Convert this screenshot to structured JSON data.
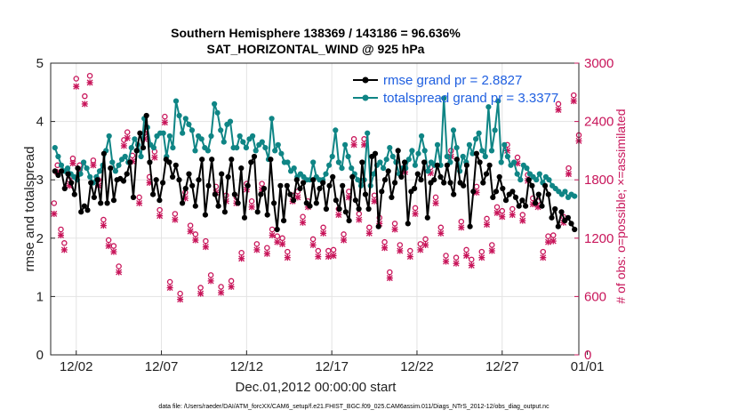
{
  "chart_data": {
    "type": "line",
    "title_line1": "Southern Hemisphere 138369 / 143186 = 96.636%",
    "title_line2": "SAT_HORIZONTAL_WIND @ 925 hPa",
    "xlabel": "Dec.01,2012 00:00:00 start",
    "ylabel": "rmse and totalspread",
    "ylabel_right": "# of obs: o=possible; ×=assimilated",
    "footer": "data file: /Users/raeder/DAI/ATM_forcXX/CAM6_setup/f.e21.FHIST_BGC.f09_025.CAM6assim.011/Diags_NTrS_2012-12/obs_diag_output.nc",
    "xlim": [
      0.5,
      31.5
    ],
    "ylim": [
      0,
      5
    ],
    "ylim_right": [
      0,
      3000
    ],
    "x_ticks": [
      {
        "x": 2,
        "label": "12/02"
      },
      {
        "x": 7,
        "label": "12/07"
      },
      {
        "x": 12,
        "label": "12/12"
      },
      {
        "x": 17,
        "label": "12/17"
      },
      {
        "x": 22,
        "label": "12/22"
      },
      {
        "x": 27,
        "label": "12/27"
      },
      {
        "x": 32,
        "label": "01/01"
      }
    ],
    "y_ticks": [
      "0",
      "1",
      "2",
      "3",
      "4",
      "5"
    ],
    "y_right_ticks": [
      "0",
      "600",
      "1200",
      "1800",
      "2400",
      "3000"
    ],
    "colors": {
      "rmse": "#000000",
      "spread": "#0f8585",
      "obs": "#c8155a",
      "legend_text": "#1f5fe0"
    },
    "series": [
      {
        "name": "rmse grand pr = 2.8827",
        "color": "#000000",
        "values": [
          3.15,
          3.08,
          3.15,
          2.85,
          3.1,
          2.95,
          2.75,
          3.2,
          2.45,
          2.55,
          2.48,
          2.95,
          2.7,
          3.0,
          2.6,
          3.45,
          2.6,
          3.2,
          2.65,
          3.0,
          3.02,
          2.98,
          3.1,
          3.3,
          2.7,
          3.5,
          3.8,
          3.55,
          4.1,
          3.3,
          2.75,
          3.0,
          2.65,
          2.95,
          3.35,
          3.3,
          3.05,
          3.25,
          3.0,
          2.6,
          2.85,
          3.1,
          2.9,
          2.55,
          3.0,
          3.35,
          2.4,
          2.9,
          3.35,
          2.75,
          2.55,
          3.1,
          2.45,
          3.05,
          3.35,
          2.75,
          2.6,
          3.2,
          2.35,
          2.9,
          3.3,
          3.4,
          2.45,
          2.75,
          2.85,
          2.4,
          3.35,
          2.6,
          2.15,
          2.9,
          2.3,
          2.9,
          2.75,
          2.65,
          3.0,
          2.85,
          2.95,
          2.6,
          2.55,
          3.0,
          2.6,
          2.85,
          2.95,
          2.5,
          2.9,
          3.05,
          2.65,
          2.5,
          2.9,
          2.45,
          2.3,
          3.05,
          2.65,
          2.5,
          3.3,
          2.75,
          2.5,
          3.4,
          3.45,
          2.2,
          2.8,
          3.0,
          3.15,
          2.7,
          2.95,
          3.5,
          3.05,
          3.3,
          2.25,
          2.8,
          2.85,
          3.1,
          3.0,
          3.3,
          2.35,
          2.95,
          3.0,
          3.25,
          3.05,
          2.95,
          3.25,
          2.95,
          2.75,
          3.35,
          2.95,
          2.9,
          3.25,
          2.2,
          2.8,
          3.45,
          3.3,
          2.95,
          3.1,
          3.25,
          2.7,
          2.8,
          3.05,
          2.85,
          2.65,
          2.75,
          2.8,
          2.7,
          2.55,
          2.65,
          2.55,
          3.0,
          2.9,
          2.6,
          2.75,
          2.55,
          2.9,
          2.75,
          2.35,
          2.5,
          2.2,
          2.45,
          2.3,
          2.35,
          2.25,
          2.15
        ]
      },
      {
        "name": "totalspread grand pr = 3.3377",
        "color": "#0f8585",
        "values": [
          3.55,
          3.4,
          3.25,
          3.15,
          3.2,
          3.1,
          3.05,
          3.0,
          3.1,
          3.3,
          3.2,
          3.05,
          2.95,
          3.05,
          3.15,
          3.25,
          3.5,
          3.75,
          3.3,
          3.15,
          3.25,
          3.35,
          3.4,
          3.3,
          3.55,
          3.7,
          3.6,
          3.4,
          4.05,
          3.9,
          3.6,
          3.55,
          3.75,
          3.8,
          3.8,
          3.4,
          3.75,
          3.55,
          4.35,
          4.1,
          3.8,
          4.05,
          3.95,
          3.85,
          3.5,
          3.75,
          3.7,
          3.55,
          3.5,
          3.75,
          4.3,
          4.15,
          3.85,
          3.65,
          3.95,
          4.0,
          3.55,
          3.55,
          3.75,
          3.65,
          3.55,
          3.7,
          3.75,
          3.5,
          3.6,
          3.65,
          3.55,
          3.35,
          4.05,
          3.5,
          3.6,
          3.45,
          3.3,
          3.3,
          3.15,
          3.2,
          3.05,
          3.1,
          3.05,
          3.0,
          3.0,
          3.3,
          3.05,
          3.0,
          3.0,
          3.1,
          3.25,
          3.4,
          3.85,
          3.3,
          3.2,
          3.6,
          3.4,
          3.2,
          3.1,
          3.0,
          2.9,
          3.0,
          3.8,
          2.9,
          3.1,
          3.25,
          3.3,
          3.2,
          3.35,
          3.55,
          3.4,
          3.3,
          3.1,
          3.2,
          3.2,
          3.35,
          3.5,
          3.25,
          3.45,
          3.75,
          3.5,
          3.15,
          3.3,
          3.25,
          3.6,
          3.25,
          4.4,
          3.4,
          3.3,
          3.85,
          3.55,
          3.15,
          3.4,
          3.3,
          3.6,
          3.45,
          3.7,
          3.8,
          3.5,
          3.4,
          4.25,
          3.5,
          3.85,
          4.35,
          3.3,
          3.6,
          3.4,
          3.25,
          3.3,
          3.1,
          3.0,
          3.25,
          3.2,
          3.1,
          3.05,
          3.0,
          3.1,
          2.95,
          3.05,
          3.0,
          2.9,
          2.85,
          2.8,
          2.75,
          2.8,
          2.7,
          2.75,
          2.72
        ]
      }
    ],
    "obs_possible": [
      {
        "x": 0.7,
        "v": 1560
      },
      {
        "x": 0.9,
        "v": 1950
      },
      {
        "x": 1.1,
        "v": 1290
      },
      {
        "x": 1.3,
        "v": 1150
      },
      {
        "x": 1.6,
        "v": 1800
      },
      {
        "x": 1.8,
        "v": 2020
      },
      {
        "x": 2.0,
        "v": 2840
      },
      {
        "x": 2.2,
        "v": 1950
      },
      {
        "x": 2.5,
        "v": 2660
      },
      {
        "x": 2.8,
        "v": 2870
      },
      {
        "x": 3.0,
        "v": 2000
      },
      {
        "x": 3.3,
        "v": 1800
      },
      {
        "x": 3.6,
        "v": 1390
      },
      {
        "x": 3.9,
        "v": 1180
      },
      {
        "x": 4.2,
        "v": 1120
      },
      {
        "x": 4.5,
        "v": 910
      },
      {
        "x": 4.8,
        "v": 2210
      },
      {
        "x": 5.0,
        "v": 2290
      },
      {
        "x": 5.3,
        "v": 2050
      },
      {
        "x": 5.7,
        "v": 1620
      },
      {
        "x": 6.0,
        "v": 2280
      },
      {
        "x": 6.3,
        "v": 1830
      },
      {
        "x": 6.6,
        "v": 2090
      },
      {
        "x": 6.9,
        "v": 1490
      },
      {
        "x": 7.2,
        "v": 2450
      },
      {
        "x": 7.5,
        "v": 750
      },
      {
        "x": 7.8,
        "v": 1450
      },
      {
        "x": 8.1,
        "v": 630
      },
      {
        "x": 8.4,
        "v": 1670
      },
      {
        "x": 8.7,
        "v": 1330
      },
      {
        "x": 9.0,
        "v": 1240
      },
      {
        "x": 9.3,
        "v": 690
      },
      {
        "x": 9.6,
        "v": 1170
      },
      {
        "x": 9.9,
        "v": 820
      },
      {
        "x": 10.2,
        "v": 1730
      },
      {
        "x": 10.5,
        "v": 700
      },
      {
        "x": 10.8,
        "v": 1640
      },
      {
        "x": 11.1,
        "v": 760
      },
      {
        "x": 11.4,
        "v": 1620
      },
      {
        "x": 11.7,
        "v": 1050
      },
      {
        "x": 12.0,
        "v": 1760
      },
      {
        "x": 12.3,
        "v": 1580
      },
      {
        "x": 12.6,
        "v": 1140
      },
      {
        "x": 12.9,
        "v": 1760
      },
      {
        "x": 13.2,
        "v": 1100
      },
      {
        "x": 13.5,
        "v": 1290
      },
      {
        "x": 13.8,
        "v": 1220
      },
      {
        "x": 14.1,
        "v": 1200
      },
      {
        "x": 14.4,
        "v": 1060
      },
      {
        "x": 14.7,
        "v": 1640
      },
      {
        "x": 15.0,
        "v": 1680
      },
      {
        "x": 15.3,
        "v": 1420
      },
      {
        "x": 15.6,
        "v": 1580
      },
      {
        "x": 15.9,
        "v": 1190
      },
      {
        "x": 16.2,
        "v": 1070
      },
      {
        "x": 16.5,
        "v": 1310
      },
      {
        "x": 16.8,
        "v": 1070
      },
      {
        "x": 17.1,
        "v": 1080
      },
      {
        "x": 17.4,
        "v": 1500
      },
      {
        "x": 17.7,
        "v": 1240
      },
      {
        "x": 18.0,
        "v": 1680
      },
      {
        "x": 18.3,
        "v": 2220
      },
      {
        "x": 18.6,
        "v": 1450
      },
      {
        "x": 18.9,
        "v": 2220
      },
      {
        "x": 19.2,
        "v": 1310
      },
      {
        "x": 19.5,
        "v": 1640
      },
      {
        "x": 19.8,
        "v": 1410
      },
      {
        "x": 20.1,
        "v": 1160
      },
      {
        "x": 20.4,
        "v": 850
      },
      {
        "x": 20.7,
        "v": 1350
      },
      {
        "x": 21.0,
        "v": 1130
      },
      {
        "x": 21.3,
        "v": 1940
      },
      {
        "x": 21.6,
        "v": 1070
      },
      {
        "x": 21.9,
        "v": 1510
      },
      {
        "x": 22.2,
        "v": 1140
      },
      {
        "x": 22.5,
        "v": 1190
      },
      {
        "x": 22.8,
        "v": 1930
      },
      {
        "x": 23.1,
        "v": 1620
      },
      {
        "x": 23.4,
        "v": 1310
      },
      {
        "x": 23.7,
        "v": 1020
      },
      {
        "x": 24.0,
        "v": 2100
      },
      {
        "x": 24.3,
        "v": 1000
      },
      {
        "x": 24.6,
        "v": 1370
      },
      {
        "x": 24.9,
        "v": 1080
      },
      {
        "x": 25.2,
        "v": 980
      },
      {
        "x": 25.5,
        "v": 1730
      },
      {
        "x": 25.8,
        "v": 1060
      },
      {
        "x": 26.1,
        "v": 1400
      },
      {
        "x": 26.4,
        "v": 1130
      },
      {
        "x": 26.7,
        "v": 1520
      },
      {
        "x": 27.0,
        "v": 1480
      },
      {
        "x": 27.3,
        "v": 2160
      },
      {
        "x": 27.6,
        "v": 1500
      },
      {
        "x": 27.9,
        "v": 2030
      },
      {
        "x": 28.2,
        "v": 1440
      },
      {
        "x": 28.5,
        "v": 1850
      },
      {
        "x": 28.8,
        "v": 1610
      },
      {
        "x": 29.1,
        "v": 1580
      },
      {
        "x": 29.4,
        "v": 1060
      },
      {
        "x": 29.7,
        "v": 1220
      },
      {
        "x": 30.0,
        "v": 1230
      },
      {
        "x": 30.3,
        "v": 2580
      },
      {
        "x": 30.6,
        "v": 1420
      },
      {
        "x": 30.9,
        "v": 1920
      },
      {
        "x": 31.2,
        "v": 2670
      },
      {
        "x": 31.5,
        "v": 2260
      }
    ],
    "obs_assimilated": [
      {
        "x": 0.7,
        "v": 1450
      },
      {
        "x": 0.9,
        "v": 1880
      },
      {
        "x": 1.1,
        "v": 1230
      },
      {
        "x": 1.3,
        "v": 1080
      },
      {
        "x": 1.6,
        "v": 1740
      },
      {
        "x": 1.8,
        "v": 1970
      },
      {
        "x": 2.0,
        "v": 2760
      },
      {
        "x": 2.2,
        "v": 1900
      },
      {
        "x": 2.5,
        "v": 2580
      },
      {
        "x": 2.8,
        "v": 2800
      },
      {
        "x": 3.0,
        "v": 1950
      },
      {
        "x": 3.3,
        "v": 1740
      },
      {
        "x": 3.6,
        "v": 1330
      },
      {
        "x": 3.9,
        "v": 1120
      },
      {
        "x": 4.2,
        "v": 1060
      },
      {
        "x": 4.5,
        "v": 850
      },
      {
        "x": 4.8,
        "v": 2150
      },
      {
        "x": 5.0,
        "v": 2230
      },
      {
        "x": 5.3,
        "v": 1990
      },
      {
        "x": 5.7,
        "v": 1560
      },
      {
        "x": 6.0,
        "v": 2220
      },
      {
        "x": 6.3,
        "v": 1770
      },
      {
        "x": 6.6,
        "v": 2030
      },
      {
        "x": 6.9,
        "v": 1430
      },
      {
        "x": 7.2,
        "v": 2390
      },
      {
        "x": 7.5,
        "v": 690
      },
      {
        "x": 7.8,
        "v": 1390
      },
      {
        "x": 8.1,
        "v": 570
      },
      {
        "x": 8.4,
        "v": 1610
      },
      {
        "x": 8.7,
        "v": 1270
      },
      {
        "x": 9.0,
        "v": 1180
      },
      {
        "x": 9.3,
        "v": 630
      },
      {
        "x": 9.6,
        "v": 1110
      },
      {
        "x": 9.9,
        "v": 760
      },
      {
        "x": 10.2,
        "v": 1670
      },
      {
        "x": 10.5,
        "v": 640
      },
      {
        "x": 10.8,
        "v": 1580
      },
      {
        "x": 11.1,
        "v": 700
      },
      {
        "x": 11.4,
        "v": 1560
      },
      {
        "x": 11.7,
        "v": 990
      },
      {
        "x": 12.0,
        "v": 1700
      },
      {
        "x": 12.3,
        "v": 1520
      },
      {
        "x": 12.6,
        "v": 1080
      },
      {
        "x": 12.9,
        "v": 1700
      },
      {
        "x": 13.2,
        "v": 1040
      },
      {
        "x": 13.5,
        "v": 1230
      },
      {
        "x": 13.8,
        "v": 1160
      },
      {
        "x": 14.1,
        "v": 1140
      },
      {
        "x": 14.4,
        "v": 1000
      },
      {
        "x": 14.7,
        "v": 1580
      },
      {
        "x": 15.0,
        "v": 1620
      },
      {
        "x": 15.3,
        "v": 1360
      },
      {
        "x": 15.6,
        "v": 1520
      },
      {
        "x": 15.9,
        "v": 1130
      },
      {
        "x": 16.2,
        "v": 1010
      },
      {
        "x": 16.5,
        "v": 1250
      },
      {
        "x": 16.8,
        "v": 1010
      },
      {
        "x": 17.1,
        "v": 1020
      },
      {
        "x": 17.4,
        "v": 1440
      },
      {
        "x": 17.7,
        "v": 1180
      },
      {
        "x": 18.0,
        "v": 1620
      },
      {
        "x": 18.3,
        "v": 2160
      },
      {
        "x": 18.6,
        "v": 1390
      },
      {
        "x": 18.9,
        "v": 2160
      },
      {
        "x": 19.2,
        "v": 1250
      },
      {
        "x": 19.5,
        "v": 1580
      },
      {
        "x": 19.8,
        "v": 1350
      },
      {
        "x": 20.1,
        "v": 1100
      },
      {
        "x": 20.4,
        "v": 790
      },
      {
        "x": 20.7,
        "v": 1290
      },
      {
        "x": 21.0,
        "v": 1070
      },
      {
        "x": 21.3,
        "v": 1880
      },
      {
        "x": 21.6,
        "v": 1010
      },
      {
        "x": 21.9,
        "v": 1450
      },
      {
        "x": 22.2,
        "v": 1080
      },
      {
        "x": 22.5,
        "v": 1130
      },
      {
        "x": 22.8,
        "v": 1870
      },
      {
        "x": 23.1,
        "v": 1560
      },
      {
        "x": 23.4,
        "v": 1250
      },
      {
        "x": 23.7,
        "v": 960
      },
      {
        "x": 24.0,
        "v": 2040
      },
      {
        "x": 24.3,
        "v": 940
      },
      {
        "x": 24.6,
        "v": 1310
      },
      {
        "x": 24.9,
        "v": 1020
      },
      {
        "x": 25.2,
        "v": 920
      },
      {
        "x": 25.5,
        "v": 1670
      },
      {
        "x": 25.8,
        "v": 1000
      },
      {
        "x": 26.1,
        "v": 1340
      },
      {
        "x": 26.4,
        "v": 1070
      },
      {
        "x": 26.7,
        "v": 1460
      },
      {
        "x": 27.0,
        "v": 1420
      },
      {
        "x": 27.3,
        "v": 2100
      },
      {
        "x": 27.6,
        "v": 1440
      },
      {
        "x": 27.9,
        "v": 1970
      },
      {
        "x": 28.2,
        "v": 1380
      },
      {
        "x": 28.5,
        "v": 1790
      },
      {
        "x": 28.8,
        "v": 1550
      },
      {
        "x": 29.1,
        "v": 1520
      },
      {
        "x": 29.4,
        "v": 1000
      },
      {
        "x": 29.7,
        "v": 1160
      },
      {
        "x": 30.0,
        "v": 1170
      },
      {
        "x": 30.3,
        "v": 2520
      },
      {
        "x": 30.6,
        "v": 1360
      },
      {
        "x": 30.9,
        "v": 1860
      },
      {
        "x": 31.2,
        "v": 2610
      },
      {
        "x": 31.5,
        "v": 2200
      }
    ]
  }
}
